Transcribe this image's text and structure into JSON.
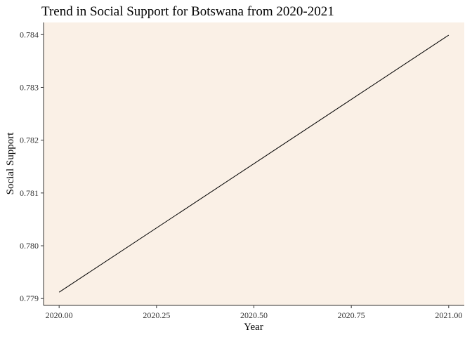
{
  "chart_data": {
    "type": "line",
    "title": "Trend in Social Support for Botswana from 2020-2021",
    "xlabel": "Year",
    "ylabel": "Social Support",
    "x": [
      2020.0,
      2021.0
    ],
    "series": [
      {
        "values": [
          0.77912,
          0.78399
        ]
      }
    ],
    "xlim": [
      2019.96,
      2021.04
    ],
    "ylim": [
      0.77887,
      0.78423
    ],
    "xticks": [
      2020.0,
      2020.25,
      2020.5,
      2020.75,
      2021.0
    ],
    "xtick_labels": [
      "2020.00",
      "2020.25",
      "2020.50",
      "2020.75",
      "2021.00"
    ],
    "yticks": [
      0.779,
      0.78,
      0.781,
      0.782,
      0.783,
      0.784
    ],
    "ytick_labels": [
      "0.779",
      "0.780",
      "0.781",
      "0.782",
      "0.783",
      "0.784"
    ],
    "grid": false,
    "legend": "none",
    "colors": {
      "panel_background": "#faf0e6",
      "line": "#000000",
      "axis": "#333333"
    }
  }
}
